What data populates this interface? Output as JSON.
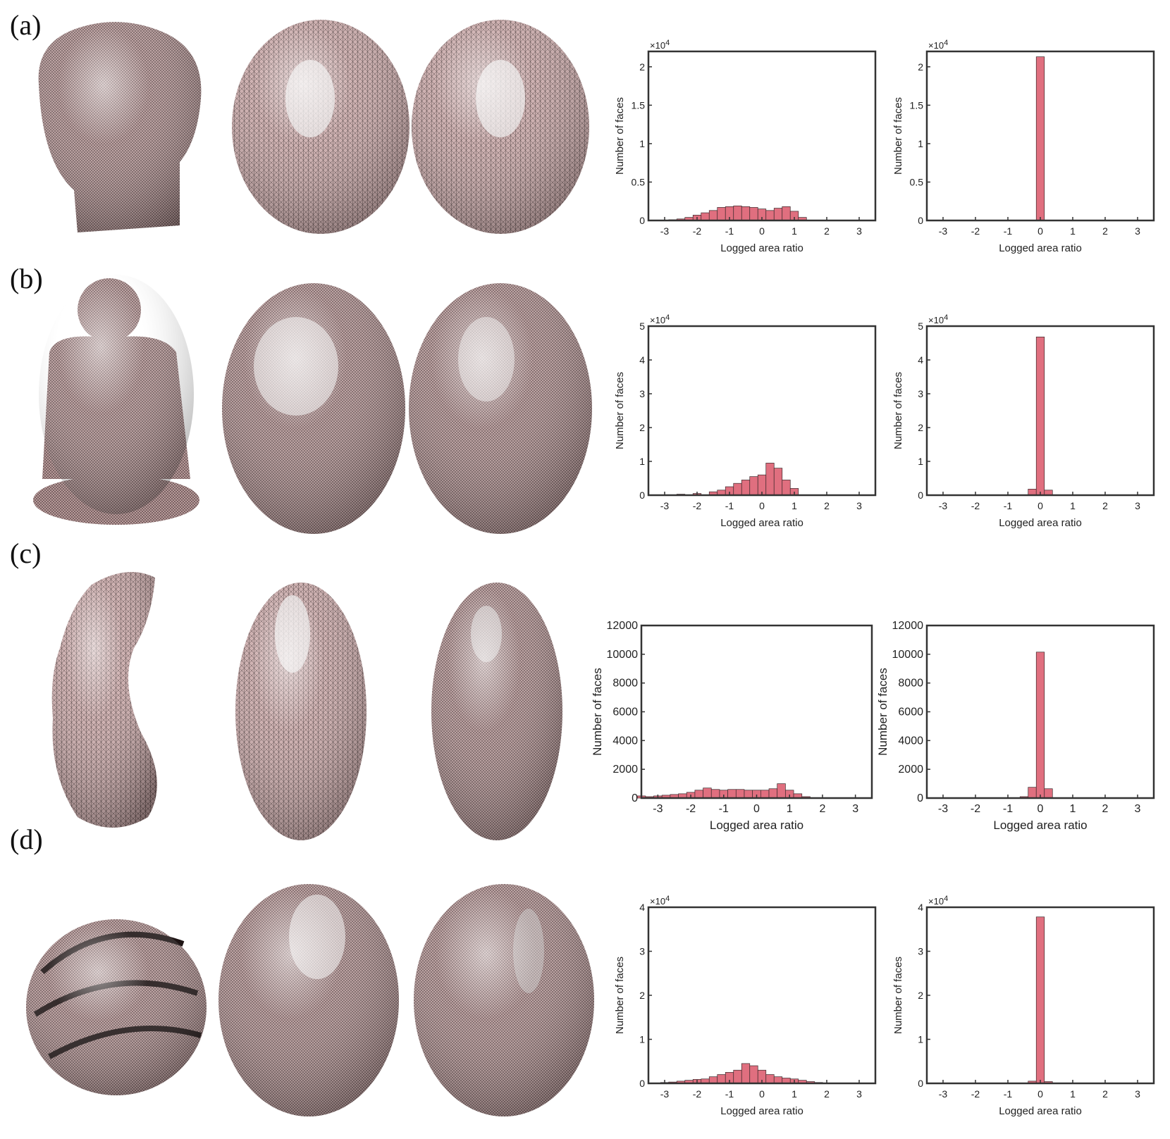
{
  "figure": {
    "rows": [
      {
        "label": "(a)",
        "model": "david-head",
        "charts": [
          {
            "type": "bar",
            "xlabel": "Logged area ratio",
            "ylabel": "Number of faces",
            "ylim": [
              0,
              2.2
            ],
            "multiplier": "×10",
            "multiplier_exp": "4",
            "yticks": [
              "0",
              "0.5",
              "1",
              "1.5",
              "2"
            ],
            "xticks": [
              "-3",
              "-2",
              "-1",
              "0",
              "1",
              "2",
              "3"
            ],
            "xlim": [
              -3.5,
              3.5
            ],
            "bins_x": [
              -2.75,
              -2.5,
              -2.25,
              -2.0,
              -1.75,
              -1.5,
              -1.25,
              -1.0,
              -0.75,
              -0.5,
              -0.25,
              0.0,
              0.25,
              0.5,
              0.75,
              1.0,
              1.25
            ],
            "values": [
              0.01,
              0.02,
              0.04,
              0.07,
              0.1,
              0.13,
              0.17,
              0.18,
              0.19,
              0.18,
              0.17,
              0.15,
              0.13,
              0.16,
              0.18,
              0.12,
              0.04
            ]
          },
          {
            "type": "bar",
            "xlabel": "Logged area ratio",
            "ylabel": "Number of faces",
            "ylim": [
              0,
              2.2
            ],
            "multiplier": "×10",
            "multiplier_exp": "4",
            "yticks": [
              "0",
              "0.5",
              "1",
              "1.5",
              "2"
            ],
            "xticks": [
              "-3",
              "-2",
              "-1",
              "0",
              "1",
              "2",
              "3"
            ],
            "xlim": [
              -3.5,
              3.5
            ],
            "bins_x": [
              0.0
            ],
            "values": [
              2.13
            ]
          }
        ]
      },
      {
        "label": "(b)",
        "model": "buddha",
        "charts": [
          {
            "type": "bar",
            "xlabel": "Logged area ratio",
            "ylabel": "Number of faces",
            "ylim": [
              0,
              5
            ],
            "multiplier": "×10",
            "multiplier_exp": "4",
            "yticks": [
              "0",
              "1",
              "2",
              "3",
              "4",
              "5"
            ],
            "xticks": [
              "-3",
              "-2",
              "-1",
              "0",
              "1",
              "2",
              "3"
            ],
            "xlim": [
              -3.5,
              3.5
            ],
            "bins_x": [
              -2.5,
              -2.0,
              -1.5,
              -1.25,
              -1.0,
              -0.75,
              -0.5,
              -0.25,
              0.0,
              0.25,
              0.5,
              0.75,
              1.0
            ],
            "values": [
              0.03,
              0.05,
              0.1,
              0.15,
              0.25,
              0.35,
              0.45,
              0.55,
              0.6,
              0.95,
              0.8,
              0.45,
              0.2
            ]
          },
          {
            "type": "bar",
            "xlabel": "Logged area ratio",
            "ylabel": "Number of faces",
            "ylim": [
              0,
              5
            ],
            "multiplier": "×10",
            "multiplier_exp": "4",
            "yticks": [
              "0",
              "1",
              "2",
              "3",
              "4",
              "5"
            ],
            "xticks": [
              "-3",
              "-2",
              "-1",
              "0",
              "1",
              "2",
              "3"
            ],
            "xlim": [
              -3.5,
              3.5
            ],
            "bins_x": [
              -0.25,
              0.0,
              0.25
            ],
            "values": [
              0.18,
              4.68,
              0.15
            ]
          }
        ]
      },
      {
        "label": "(c)",
        "model": "bone",
        "charts": [
          {
            "type": "bar",
            "xlabel": "Logged area ratio",
            "ylabel": "Number of faces",
            "ylim": [
              0,
              12000
            ],
            "multiplier": "",
            "multiplier_exp": "",
            "yticks": [
              "0",
              "2000",
              "4000",
              "6000",
              "8000",
              "10000",
              "12000"
            ],
            "xticks": [
              "-3",
              "-2",
              "-1",
              "0",
              "1",
              "2",
              "3"
            ],
            "xlim": [
              -3.5,
              3.5
            ],
            "bins_x": [
              -3.5,
              -3.25,
              -3.0,
              -2.75,
              -2.5,
              -2.25,
              -2.0,
              -1.75,
              -1.5,
              -1.25,
              -1.0,
              -0.75,
              -0.5,
              -0.25,
              0.0,
              0.25,
              0.5,
              0.75,
              1.0,
              1.25,
              1.5
            ],
            "values": [
              150,
              100,
              150,
              200,
              250,
              300,
              400,
              550,
              700,
              600,
              550,
              600,
              600,
              550,
              550,
              550,
              650,
              1000,
              550,
              300,
              100
            ]
          },
          {
            "type": "bar",
            "xlabel": "Logged area ratio",
            "ylabel": "Number of faces",
            "ylim": [
              0,
              12000
            ],
            "multiplier": "",
            "multiplier_exp": "",
            "yticks": [
              "0",
              "2000",
              "4000",
              "6000",
              "8000",
              "10000",
              "12000"
            ],
            "xticks": [
              "-3",
              "-2",
              "-1",
              "0",
              "1",
              "2",
              "3"
            ],
            "xlim": [
              -3.5,
              3.5
            ],
            "bins_x": [
              -0.5,
              -0.25,
              0.0,
              0.25
            ],
            "values": [
              100,
              750,
              10150,
              650
            ]
          }
        ]
      },
      {
        "label": "(d)",
        "model": "spiral-ball",
        "charts": [
          {
            "type": "bar",
            "xlabel": "Logged area ratio",
            "ylabel": "Number of faces",
            "ylim": [
              0,
              4
            ],
            "multiplier": "×10",
            "multiplier_exp": "4",
            "yticks": [
              "0",
              "1",
              "2",
              "3",
              "4"
            ],
            "xticks": [
              "-3",
              "-2",
              "-1",
              "0",
              "1",
              "2",
              "3"
            ],
            "xlim": [
              -3.5,
              3.5
            ],
            "bins_x": [
              -3.0,
              -2.75,
              -2.5,
              -2.25,
              -2.0,
              -1.75,
              -1.5,
              -1.25,
              -1.0,
              -0.75,
              -0.5,
              -0.25,
              0.0,
              0.25,
              0.5,
              0.75,
              1.0,
              1.25,
              1.5,
              1.75
            ],
            "values": [
              0.02,
              0.03,
              0.05,
              0.07,
              0.09,
              0.1,
              0.15,
              0.2,
              0.25,
              0.3,
              0.45,
              0.4,
              0.3,
              0.2,
              0.15,
              0.12,
              0.1,
              0.07,
              0.04,
              0.02
            ]
          },
          {
            "type": "bar",
            "xlabel": "Logged area ratio",
            "ylabel": "Number of faces",
            "ylim": [
              0,
              4
            ],
            "multiplier": "×10",
            "multiplier_exp": "4",
            "yticks": [
              "0",
              "1",
              "2",
              "3",
              "4"
            ],
            "xticks": [
              "-3",
              "-2",
              "-1",
              "0",
              "1",
              "2",
              "3"
            ],
            "xlim": [
              -3.5,
              3.5
            ],
            "bins_x": [
              -0.25,
              0.0,
              0.25
            ],
            "values": [
              0.05,
              3.78,
              0.04
            ]
          }
        ]
      }
    ],
    "colors": {
      "bar": "#e06f7f",
      "bar_edge": "#3a2a2c",
      "mesh": "#c9a9a9",
      "mesh_dark": "#5a4848",
      "axis": "#333333"
    }
  }
}
